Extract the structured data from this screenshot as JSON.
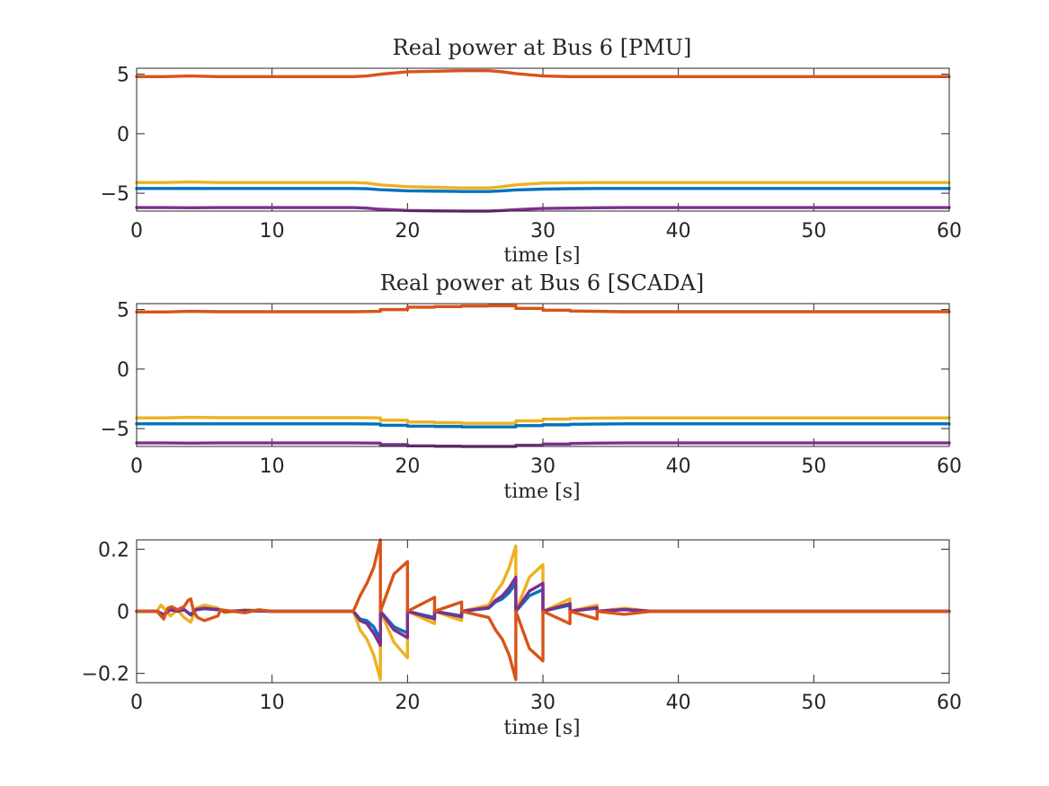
{
  "chart_data": [
    {
      "type": "line",
      "title": "Real power at Bus 6 [PMU]",
      "xlabel": "time [s]",
      "ylabel": "",
      "xlim": [
        0,
        60
      ],
      "ylim": [
        -6.5,
        5.5
      ],
      "xticks": [
        0,
        10,
        20,
        30,
        40,
        50,
        60
      ],
      "xtick_labels": [
        "0",
        "10",
        "20",
        "30",
        "40",
        "50",
        "60"
      ],
      "yticks": [
        5,
        0,
        -5
      ],
      "ytick_labels": [
        "5",
        "0",
        "−5"
      ],
      "grid": false,
      "series": [
        {
          "color": "#D95319",
          "x": [
            0,
            2,
            4,
            6,
            16,
            17,
            18,
            20,
            22,
            24,
            26,
            27,
            28,
            30,
            32,
            34,
            36,
            60
          ],
          "y": [
            4.8,
            4.8,
            4.85,
            4.8,
            4.8,
            4.85,
            5.0,
            5.2,
            5.25,
            5.3,
            5.3,
            5.2,
            5.05,
            4.85,
            4.8,
            4.8,
            4.8,
            4.8
          ]
        },
        {
          "color": "#EDB120",
          "x": [
            0,
            2,
            4,
            6,
            16,
            17,
            18,
            20,
            22,
            24,
            26,
            27,
            28,
            30,
            32,
            34,
            36,
            60
          ],
          "y": [
            -4.1,
            -4.1,
            -4.05,
            -4.1,
            -4.1,
            -4.15,
            -4.3,
            -4.45,
            -4.5,
            -4.55,
            -4.55,
            -4.45,
            -4.3,
            -4.15,
            -4.12,
            -4.1,
            -4.1,
            -4.1
          ]
        },
        {
          "color": "#0072BD",
          "x": [
            0,
            2,
            4,
            6,
            16,
            17,
            18,
            20,
            22,
            24,
            26,
            27,
            28,
            30,
            32,
            34,
            36,
            60
          ],
          "y": [
            -4.6,
            -4.6,
            -4.6,
            -4.6,
            -4.6,
            -4.62,
            -4.7,
            -4.8,
            -4.82,
            -4.85,
            -4.85,
            -4.8,
            -4.72,
            -4.65,
            -4.62,
            -4.6,
            -4.6,
            -4.6
          ]
        },
        {
          "color": "#7E2F8E",
          "x": [
            0,
            2,
            4,
            6,
            16,
            17,
            18,
            20,
            22,
            24,
            26,
            27,
            28,
            30,
            32,
            34,
            36,
            60
          ],
          "y": [
            -6.2,
            -6.2,
            -6.22,
            -6.2,
            -6.2,
            -6.25,
            -6.35,
            -6.45,
            -6.48,
            -6.5,
            -6.5,
            -6.45,
            -6.38,
            -6.28,
            -6.25,
            -6.22,
            -6.2,
            -6.2
          ]
        }
      ]
    },
    {
      "type": "line",
      "title": "Real power at Bus 6 [SCADA]",
      "xlabel": "time [s]",
      "ylabel": "",
      "xlim": [
        0,
        60
      ],
      "ylim": [
        -6.5,
        5.5
      ],
      "xticks": [
        0,
        10,
        20,
        30,
        40,
        50,
        60
      ],
      "xtick_labels": [
        "0",
        "10",
        "20",
        "30",
        "40",
        "50",
        "60"
      ],
      "yticks": [
        5,
        0,
        -5
      ],
      "ytick_labels": [
        "5",
        "0",
        "−5"
      ],
      "grid": false,
      "series": [
        {
          "color": "#D95319",
          "x": [
            0,
            2,
            4,
            6,
            16,
            18,
            18,
            20,
            20,
            22,
            22,
            24,
            24,
            26,
            26,
            28,
            28,
            30,
            30,
            32,
            32,
            34,
            36,
            60
          ],
          "y": [
            4.8,
            4.8,
            4.85,
            4.82,
            4.82,
            4.85,
            5.0,
            5.0,
            5.2,
            5.2,
            5.25,
            5.25,
            5.3,
            5.3,
            5.32,
            5.32,
            5.1,
            5.1,
            4.95,
            4.95,
            4.88,
            4.85,
            4.82,
            4.82
          ]
        },
        {
          "color": "#EDB120",
          "x": [
            0,
            2,
            4,
            6,
            16,
            18,
            18,
            20,
            20,
            22,
            22,
            24,
            24,
            26,
            26,
            28,
            28,
            30,
            30,
            32,
            32,
            34,
            36,
            60
          ],
          "y": [
            -4.1,
            -4.1,
            -4.05,
            -4.08,
            -4.08,
            -4.1,
            -4.3,
            -4.3,
            -4.45,
            -4.45,
            -4.5,
            -4.5,
            -4.55,
            -4.55,
            -4.55,
            -4.55,
            -4.35,
            -4.35,
            -4.2,
            -4.2,
            -4.15,
            -4.12,
            -4.1,
            -4.1
          ]
        },
        {
          "color": "#0072BD",
          "x": [
            0,
            2,
            4,
            6,
            16,
            18,
            18,
            20,
            20,
            22,
            22,
            24,
            24,
            26,
            26,
            28,
            28,
            30,
            30,
            32,
            32,
            34,
            36,
            60
          ],
          "y": [
            -4.6,
            -4.6,
            -4.6,
            -4.6,
            -4.6,
            -4.62,
            -4.72,
            -4.72,
            -4.8,
            -4.8,
            -4.82,
            -4.82,
            -4.85,
            -4.85,
            -4.85,
            -4.85,
            -4.75,
            -4.75,
            -4.68,
            -4.68,
            -4.64,
            -4.62,
            -4.6,
            -4.6
          ]
        },
        {
          "color": "#7E2F8E",
          "x": [
            0,
            2,
            4,
            6,
            16,
            18,
            18,
            20,
            20,
            22,
            22,
            24,
            24,
            26,
            26,
            28,
            28,
            30,
            30,
            32,
            32,
            34,
            36,
            60
          ],
          "y": [
            -6.2,
            -6.2,
            -6.22,
            -6.2,
            -6.2,
            -6.22,
            -6.35,
            -6.35,
            -6.45,
            -6.45,
            -6.48,
            -6.48,
            -6.5,
            -6.5,
            -6.5,
            -6.5,
            -6.4,
            -6.4,
            -6.3,
            -6.3,
            -6.25,
            -6.22,
            -6.2,
            -6.2
          ]
        }
      ]
    },
    {
      "type": "line",
      "title": "",
      "xlabel": "time [s]",
      "ylabel": "",
      "xlim": [
        0,
        60
      ],
      "ylim": [
        -0.23,
        0.23
      ],
      "xticks": [
        0,
        10,
        20,
        30,
        40,
        50,
        60
      ],
      "xtick_labels": [
        "0",
        "10",
        "20",
        "30",
        "40",
        "50",
        "60"
      ],
      "yticks": [
        0.2,
        0,
        -0.2
      ],
      "ytick_labels": [
        "0.2",
        "0",
        "−0.2"
      ],
      "grid": false,
      "series": [
        {
          "color": "#EDB120",
          "x": [
            0,
            1.5,
            1.8,
            2,
            2.5,
            3,
            3.5,
            4,
            4.4,
            5,
            6,
            6.5,
            8,
            10,
            16,
            16.5,
            17,
            17.5,
            18,
            18,
            19,
            20,
            20,
            22,
            22,
            24,
            24,
            26,
            26.5,
            27,
            27.5,
            28,
            28,
            29,
            30,
            30,
            32,
            32,
            34,
            34,
            36,
            38,
            40,
            60
          ],
          "y": [
            0,
            0,
            0.02,
            0.01,
            -0.015,
            0.005,
            -0.02,
            -0.035,
            0.01,
            0.02,
            0.01,
            -0.005,
            0.005,
            0,
            0,
            -0.06,
            -0.09,
            -0.14,
            -0.22,
            0,
            -0.1,
            -0.15,
            0,
            -0.04,
            0,
            -0.03,
            0,
            0.02,
            0.06,
            0.09,
            0.14,
            0.21,
            0,
            0.11,
            0.15,
            0,
            0.04,
            0,
            0.02,
            0,
            0.01,
            0,
            0,
            0
          ]
        },
        {
          "color": "#0072BD",
          "x": [
            0,
            1.5,
            2,
            2.5,
            3,
            3.5,
            4,
            4.4,
            5,
            6,
            6.5,
            8,
            10,
            16,
            16.5,
            17,
            17.5,
            18,
            18,
            19,
            20,
            20,
            22,
            22,
            24,
            24,
            26,
            26.5,
            27,
            27.5,
            28,
            28,
            29,
            30,
            30,
            32,
            32,
            34,
            34,
            36,
            38,
            40,
            60
          ],
          "y": [
            0,
            0,
            -0.01,
            0.005,
            0,
            0.005,
            -0.01,
            0.005,
            0.008,
            0.005,
            0,
            0.002,
            0,
            0,
            -0.025,
            -0.03,
            -0.05,
            -0.09,
            0,
            -0.05,
            -0.07,
            0,
            -0.02,
            0,
            -0.015,
            0,
            0.01,
            0.03,
            0.04,
            0.06,
            0.09,
            0,
            0.05,
            0.07,
            0,
            0.02,
            0,
            0.01,
            0,
            0.005,
            0,
            0,
            0
          ]
        },
        {
          "color": "#7E2F8E",
          "x": [
            0,
            1.5,
            2,
            2.5,
            3,
            3.5,
            4,
            4.4,
            5,
            6,
            6.5,
            8,
            10,
            16,
            16.5,
            17,
            17.5,
            18,
            18,
            19,
            20,
            20,
            22,
            22,
            24,
            24,
            26,
            26.5,
            27,
            27.5,
            28,
            28,
            29,
            30,
            30,
            32,
            32,
            34,
            34,
            36,
            38,
            40,
            60
          ],
          "y": [
            0,
            0,
            -0.012,
            0.006,
            0,
            0.006,
            -0.012,
            0.006,
            0.01,
            0.006,
            0,
            0.002,
            0,
            0,
            -0.03,
            -0.04,
            -0.07,
            -0.11,
            0,
            -0.06,
            -0.085,
            0,
            -0.025,
            0,
            -0.018,
            0,
            0.012,
            0.035,
            0.05,
            0.075,
            0.11,
            0,
            0.065,
            0.09,
            0,
            0.025,
            0,
            0.012,
            0,
            0.006,
            0,
            0,
            0
          ]
        },
        {
          "color": "#D95319",
          "x": [
            0,
            1.5,
            2,
            2.3,
            2.6,
            3,
            3.5,
            3.8,
            4,
            4.2,
            4.5,
            5,
            6,
            6.2,
            8,
            9,
            10,
            16,
            16.5,
            17,
            17.5,
            18,
            18,
            19,
            20,
            20,
            22,
            22,
            24,
            24,
            26,
            26.5,
            27,
            27.5,
            28,
            28,
            29,
            30,
            30,
            32,
            32,
            34,
            34,
            36,
            38,
            40,
            60
          ],
          "y": [
            0,
            0,
            -0.025,
            0.01,
            0.015,
            0.005,
            0.015,
            0.035,
            0.04,
            0,
            -0.02,
            -0.03,
            -0.015,
            0.005,
            -0.005,
            0.005,
            0,
            0,
            0.05,
            0.09,
            0.14,
            0.23,
            0,
            0.12,
            0.16,
            0,
            0.045,
            0,
            0.03,
            0,
            -0.02,
            -0.06,
            -0.09,
            -0.14,
            -0.22,
            0,
            -0.12,
            -0.16,
            0,
            -0.04,
            0,
            -0.025,
            0,
            -0.01,
            0,
            0,
            0
          ]
        }
      ]
    }
  ]
}
